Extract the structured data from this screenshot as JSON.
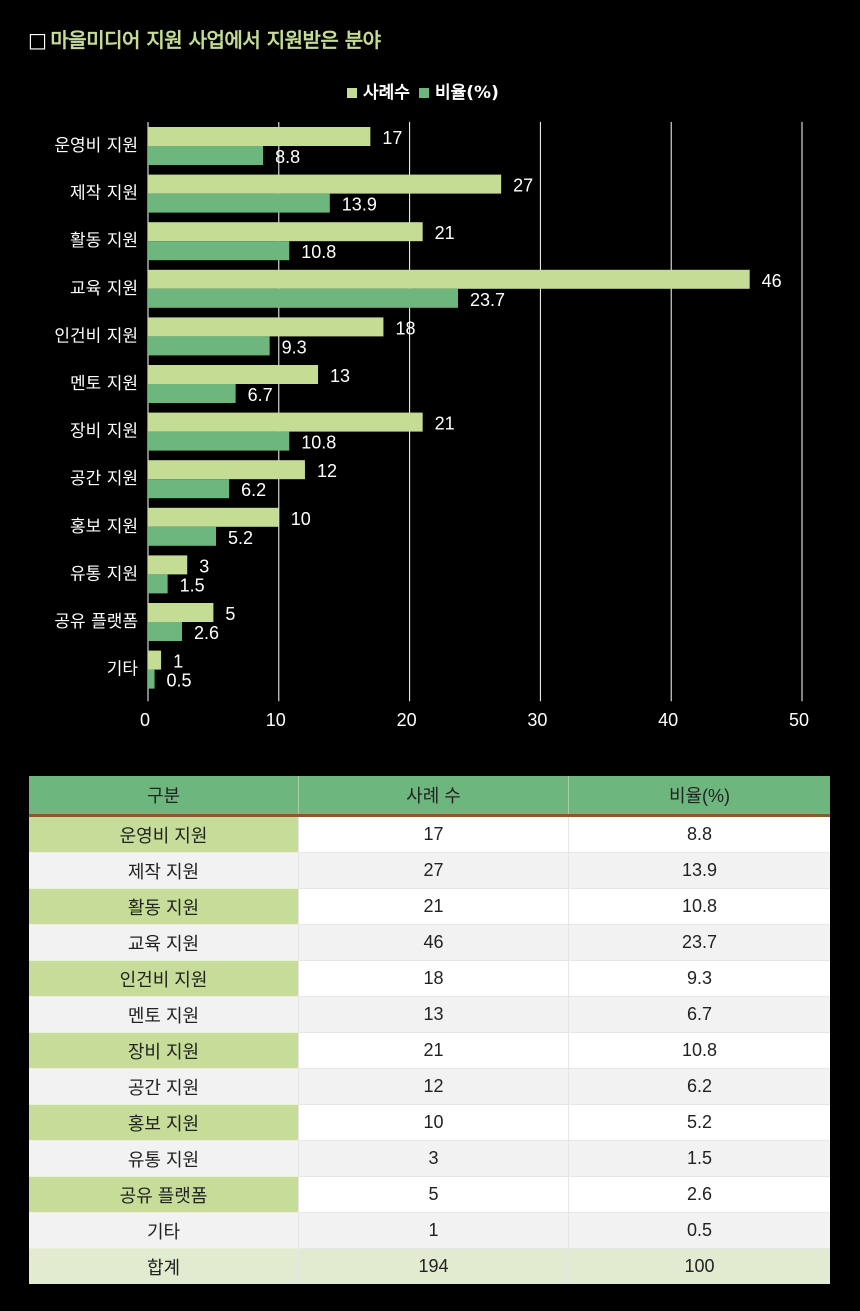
{
  "title": "마을미디어 지원 사업에서 지원받은 분야",
  "title_marker": "□",
  "chart_data": {
    "type": "bar",
    "orientation": "horizontal",
    "categories": [
      "운영비 지원",
      "제작 지원",
      "활동 지원",
      "교육 지원",
      "인건비 지원",
      "멘토 지원",
      "장비 지원",
      "공간 지원",
      "홍보 지원",
      "유통 지원",
      "공유 플랫폼",
      "기타"
    ],
    "series": [
      {
        "name": "사례수",
        "color": "#c5dc94",
        "values": [
          17,
          27,
          21,
          46,
          18,
          13,
          21,
          12,
          10,
          3,
          5,
          1
        ]
      },
      {
        "name": "비율(%)",
        "color": "#6db77e",
        "values": [
          8.8,
          13.9,
          10.8,
          23.7,
          9.3,
          6.7,
          10.8,
          6.2,
          5.2,
          1.5,
          2.6,
          0.5
        ]
      }
    ],
    "xlim": [
      0,
      50
    ],
    "xticks": [
      "0",
      "10",
      "20",
      "30",
      "40",
      "50"
    ],
    "legend_position": "top-center",
    "grid": "vertical"
  },
  "table": {
    "headers": [
      "구분",
      "사례 수",
      "비율(%)"
    ],
    "rows": [
      [
        "운영비 지원",
        "17",
        "8.8"
      ],
      [
        "제작 지원",
        "27",
        "13.9"
      ],
      [
        "활동 지원",
        "21",
        "10.8"
      ],
      [
        "교육 지원",
        "46",
        "23.7"
      ],
      [
        "인건비 지원",
        "18",
        "9.3"
      ],
      [
        "멘토 지원",
        "13",
        "6.7"
      ],
      [
        "장비 지원",
        "21",
        "10.8"
      ],
      [
        "공간 지원",
        "12",
        "6.2"
      ],
      [
        "홍보 지원",
        "10",
        "5.2"
      ],
      [
        "유통 지원",
        "3",
        "1.5"
      ],
      [
        "공유 플랫폼",
        "5",
        "2.6"
      ],
      [
        "기타",
        "1",
        "0.5"
      ]
    ],
    "total": [
      "합계",
      "194",
      "100"
    ]
  }
}
